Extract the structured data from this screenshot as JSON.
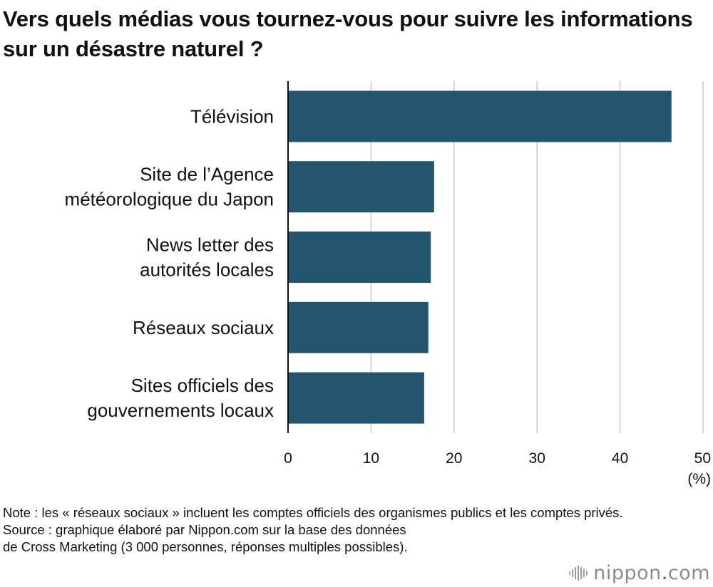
{
  "header": {
    "title": "Vers quels médias vous tournez-vous pour suivre les informations sur un désastre naturel ?"
  },
  "chart_data": {
    "type": "bar",
    "orientation": "horizontal",
    "categories": [
      [
        "Télévision"
      ],
      [
        "Site de l’Agence",
        "météorologique du Japon"
      ],
      [
        "News letter des",
        "autorités locales"
      ],
      [
        "Réseaux sociaux"
      ],
      [
        "Sites officiels des",
        "gouvernements locaux"
      ]
    ],
    "values": [
      46.2,
      17.6,
      17.2,
      16.9,
      16.4
    ],
    "xlim": [
      0,
      50
    ],
    "xticks": [
      0,
      10,
      20,
      30,
      40,
      50
    ],
    "xunit": "(%)",
    "grid": true,
    "bar_color": "#23556f"
  },
  "footer": {
    "note": "Note : les « réseaux sociaux » incluent les comptes officiels des organismes publics et les comptes privés.",
    "source_line1": "Source : graphique élaboré par Nippon.com sur la base des données",
    "source_line2": "de Cross Marketing (3 000 personnes, réponses multiples possibles)."
  },
  "brand": {
    "name_main": "nippon",
    "name_dot": ".",
    "name_tld": "com"
  },
  "colors": {
    "bar": "#23556f",
    "grid": "#c8c8c8",
    "axis": "#111111",
    "brand_dot": "#d0242b",
    "brand_text": "#8c8c8c"
  }
}
